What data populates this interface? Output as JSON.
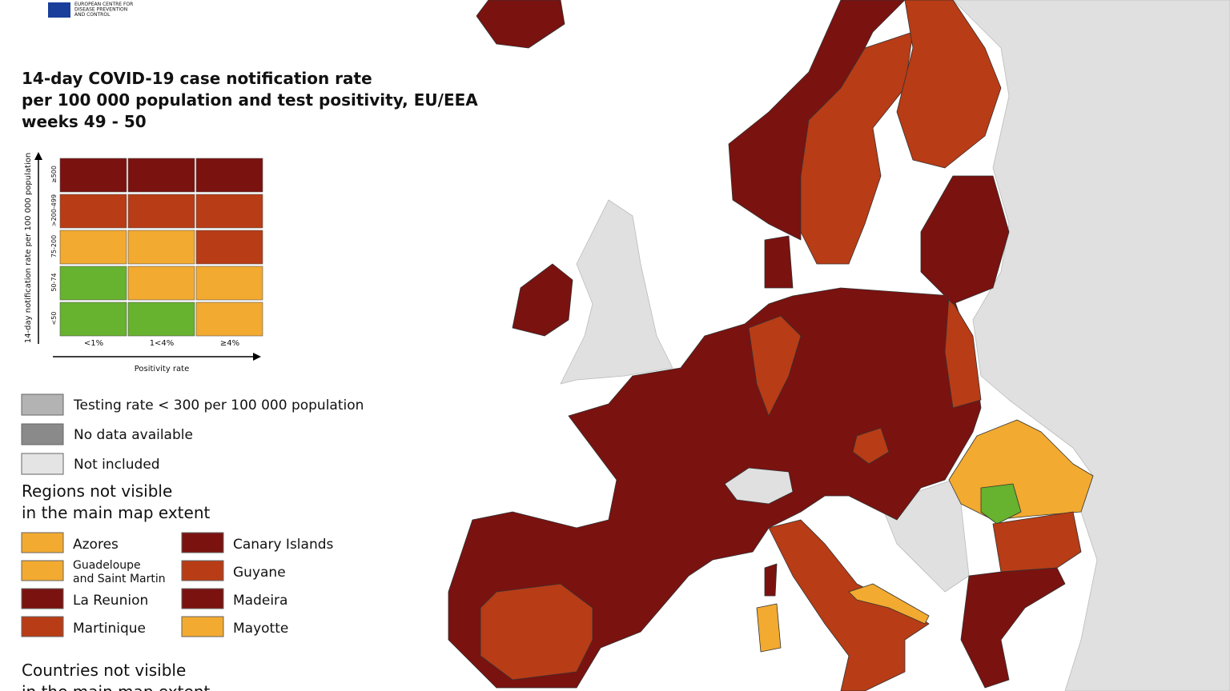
{
  "header": {
    "logo_text": [
      "EUROPEAN CENTRE FOR",
      "DISEASE PREVENTION",
      "AND CONTROL"
    ]
  },
  "title": [
    "14-day COVID-19 case notification rate",
    "per 100 000 population and test positivity, EU/EEA",
    "weeks 49 - 50"
  ],
  "matrix": {
    "y_label": "14-day notification rate per 100 000 population",
    "x_label": "Positivity rate",
    "rows": [
      "≥500",
      ">200-499",
      "75-200",
      "50-74",
      "<50"
    ],
    "columns": [
      "<1%",
      "1<4%",
      "≥4%"
    ],
    "cells": [
      [
        "#7a1210",
        "#7a1210",
        "#7a1210"
      ],
      [
        "#b83c16",
        "#b83c16",
        "#b83c16"
      ],
      [
        "#f2aa30",
        "#f2aa30",
        "#b83c16"
      ],
      [
        "#67b22e",
        "#f2aa30",
        "#f2aa30"
      ],
      [
        "#67b22e",
        "#67b22e",
        "#f2aa30"
      ]
    ]
  },
  "legend": [
    {
      "label": "Testing rate < 300 per 100 000 population",
      "color": "#b3b3b3"
    },
    {
      "label": "No data available",
      "color": "#8a8a8a"
    },
    {
      "label": "Not included",
      "color": "#e4e4e4"
    }
  ],
  "regions": {
    "heading": [
      "Regions not visible",
      "in the main map extent"
    ],
    "items": [
      {
        "label": [
          "Azores"
        ],
        "color": "#f2aa30"
      },
      {
        "label": [
          "Canary Islands"
        ],
        "color": "#7a1210"
      },
      {
        "label": [
          "Guadeloupe",
          "and Saint Martin"
        ],
        "color": "#f2aa30"
      },
      {
        "label": [
          "Guyane"
        ],
        "color": "#b83c16"
      },
      {
        "label": [
          "La Reunion"
        ],
        "color": "#7a1210"
      },
      {
        "label": [
          "Madeira"
        ],
        "color": "#7a1210"
      },
      {
        "label": [
          "Martinique"
        ],
        "color": "#b83c16"
      },
      {
        "label": [
          "Mayotte"
        ],
        "color": "#f2aa30"
      }
    ]
  },
  "countries_heading": [
    "Countries not visible",
    "in the main map extent"
  ]
}
